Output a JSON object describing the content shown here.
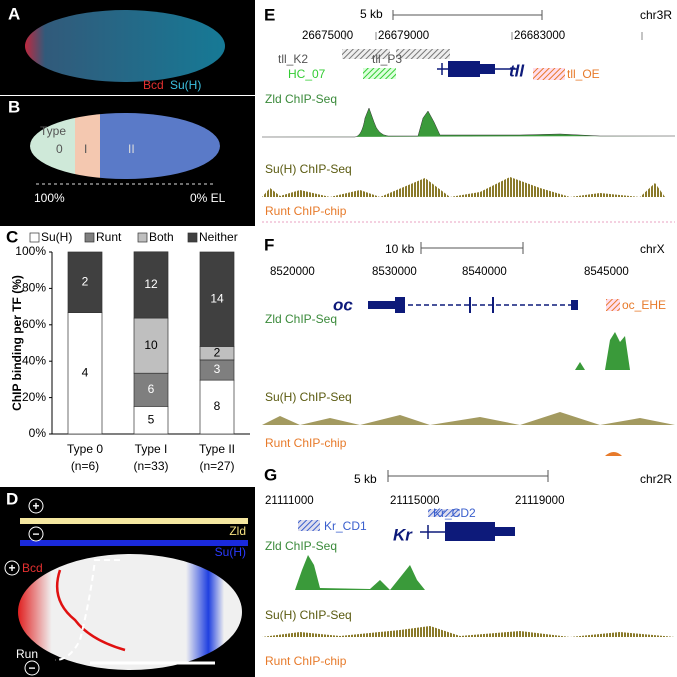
{
  "panel_a": {
    "label": "A",
    "marker_1": "Bcd",
    "marker_2": "Su(H)"
  },
  "panel_b": {
    "label": "B",
    "type_word": "Type",
    "regions": [
      "0",
      "I",
      "II"
    ],
    "axis_start": "100%",
    "axis_end": "0% EL"
  },
  "chart_data": {
    "type": "bar",
    "stacked": true,
    "panel_label": "C",
    "y_label": "ChIP binding per TF (%)",
    "categories": [
      "Type 0",
      "Type I",
      "Type II"
    ],
    "category_counts": [
      "(n=6)",
      "(n=33)",
      "(n=27)"
    ],
    "series": [
      {
        "name": "Su(H)",
        "color": "#ffffff",
        "values": [
          66.7,
          15.2,
          29.6
        ],
        "counts": [
          4,
          5,
          8
        ]
      },
      {
        "name": "Runt",
        "color": "#7f7f7f",
        "values": [
          0,
          18.2,
          11.1
        ],
        "counts": [
          null,
          6,
          3
        ]
      },
      {
        "name": "Both",
        "color": "#bfbfbf",
        "values": [
          0,
          30.3,
          7.4
        ],
        "counts": [
          null,
          10,
          2
        ]
      },
      {
        "name": "Neither",
        "color": "#404040",
        "values": [
          33.3,
          36.4,
          51.9
        ],
        "counts": [
          2,
          12,
          14
        ]
      }
    ],
    "ylim": [
      0,
      100
    ],
    "yticks": [
      {
        "value": 0,
        "label": "0%"
      },
      {
        "value": 20,
        "label": "20%"
      },
      {
        "value": 40,
        "label": "40%"
      },
      {
        "value": 60,
        "label": "60%"
      },
      {
        "value": 80,
        "label": "80%"
      },
      {
        "value": 100,
        "label": "100%"
      }
    ],
    "legend": "top"
  },
  "panel_d": {
    "label": "D",
    "plus": "+",
    "minus": "−",
    "zld": "Zld",
    "suh": "Su(H)",
    "bcd": "Bcd",
    "run": "Run"
  },
  "panel_e": {
    "label": "E",
    "scale": "5 kb",
    "chrom": "chr3R",
    "coords": [
      "26675000",
      "26679000",
      "26683000"
    ],
    "elements": [
      "tll_K2",
      "tll_P3",
      "HC_07",
      "tll_OE"
    ],
    "gene": "tll",
    "tracks": [
      "Zld ChIP-Seq",
      "Su(H) ChIP-Seq",
      "Runt ChIP-chip"
    ]
  },
  "panel_f": {
    "label": "F",
    "scale": "10 kb",
    "chrom": "chrX",
    "coords": [
      "8520000",
      "8530000",
      "8540000",
      "8545000"
    ],
    "elements": [
      "oc_EHE"
    ],
    "gene": "oc",
    "tracks": [
      "Zld ChIP-Seq",
      "Su(H) ChIP-Seq",
      "Runt ChIP-chip"
    ]
  },
  "panel_g": {
    "label": "G",
    "scale": "5 kb",
    "chrom": "chr2R",
    "coords": [
      "21111000",
      "21115000",
      "21119000"
    ],
    "elements": [
      "Kr_CD1",
      "Kr_CD2"
    ],
    "gene": "Kr",
    "tracks": [
      "Zld ChIP-Seq",
      "Su(H) ChIP-Seq",
      "Runt ChIP-chip"
    ]
  }
}
